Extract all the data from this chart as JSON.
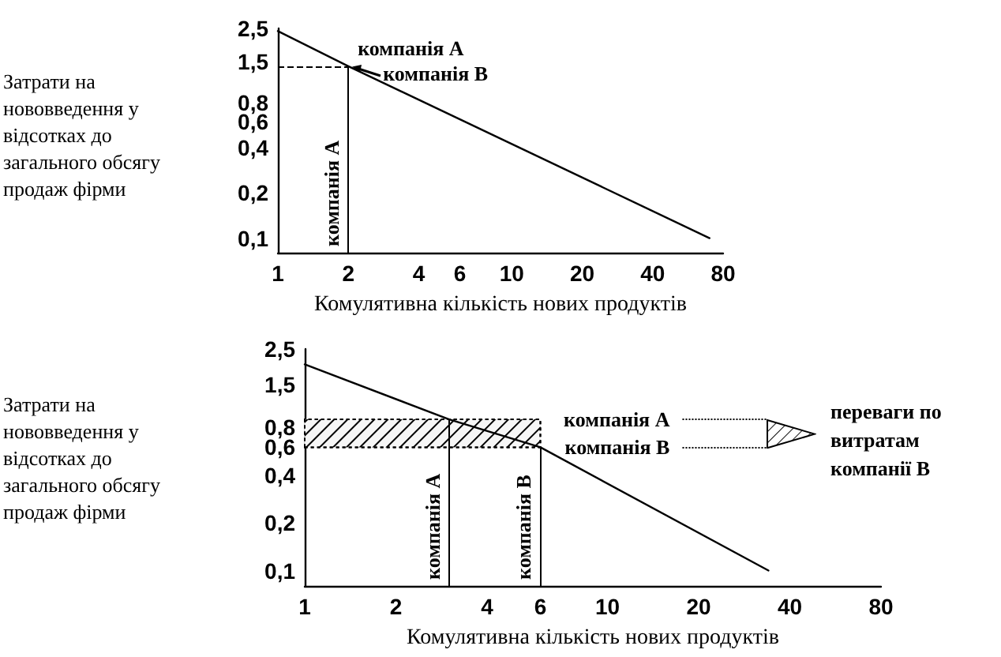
{
  "chart_data": [
    {
      "type": "line",
      "ylabel": "Затрати на нововведення у відсотках до загального обсягу продаж фірми",
      "xlabel": "Комулятивна кількість нових продуктів",
      "x": [
        1,
        2,
        70
      ],
      "values": [
        2.4,
        1.4,
        0.1
      ],
      "color": "#000000",
      "marker": "none",
      "line_style": "solid",
      "log": "xy",
      "xlim": [
        1,
        80
      ],
      "xticks": [
        1,
        2,
        4,
        6,
        10,
        20,
        40,
        80
      ],
      "ylim": [
        0.08,
        2.5
      ],
      "yticks": [
        {
          "value": 0.1,
          "label": "0,1"
        },
        {
          "value": 0.2,
          "label": "0,2"
        },
        {
          "value": 0.4,
          "label": "0,4"
        },
        {
          "value": 0.6,
          "label": "0,6"
        },
        {
          "value": 0.8,
          "label": "0,8"
        },
        {
          "value": 1.5,
          "label": "1,5"
        },
        {
          "value": 2.5,
          "label": "2,5"
        }
      ],
      "ref_lines": [
        {
          "axis": "x",
          "value": 2,
          "label": "компанія А"
        },
        {
          "axis": "y",
          "value": 1.4,
          "line_style": "dashed"
        }
      ],
      "annotations": [
        "компанія А",
        "компанія В"
      ],
      "grid": false
    },
    {
      "type": "line",
      "ylabel": "Затрати на нововведення у відсотках до загального обсягу продаж фірми",
      "xlabel": "Комулятивна кількість нових продуктів",
      "x": [
        1,
        3,
        6,
        34
      ],
      "values": [
        2.0,
        0.9,
        0.6,
        0.1
      ],
      "color": "#000000",
      "marker": "none",
      "line_style": "solid",
      "log": "xy",
      "xlim": [
        1,
        80
      ],
      "xticks": [
        1,
        2,
        4,
        6,
        10,
        20,
        40,
        80
      ],
      "ylim": [
        0.08,
        2.5
      ],
      "yticks": [
        {
          "value": 0.1,
          "label": "0,1"
        },
        {
          "value": 0.2,
          "label": "0,2"
        },
        {
          "value": 0.4,
          "label": "0,4"
        },
        {
          "value": 0.6,
          "label": "0,6"
        },
        {
          "value": 0.8,
          "label": "0,8"
        },
        {
          "value": 1.5,
          "label": "1,5"
        },
        {
          "value": 2.5,
          "label": "2,5"
        }
      ],
      "ref_lines": [
        {
          "axis": "x",
          "value": 3,
          "label": "компанія А"
        },
        {
          "axis": "x",
          "value": 6,
          "label": "компанія В"
        },
        {
          "axis": "y",
          "value": 0.9,
          "label": "компанія А",
          "line_style": "dotted"
        },
        {
          "axis": "y",
          "value": 0.6,
          "label": "компанія В",
          "line_style": "dotted"
        }
      ],
      "bands": [
        {
          "axis": "y",
          "from": 0.6,
          "to": 0.9,
          "color": "#000000"
        }
      ],
      "annotations": [
        "переваги по витратам компанії В"
      ],
      "grid": false
    }
  ]
}
